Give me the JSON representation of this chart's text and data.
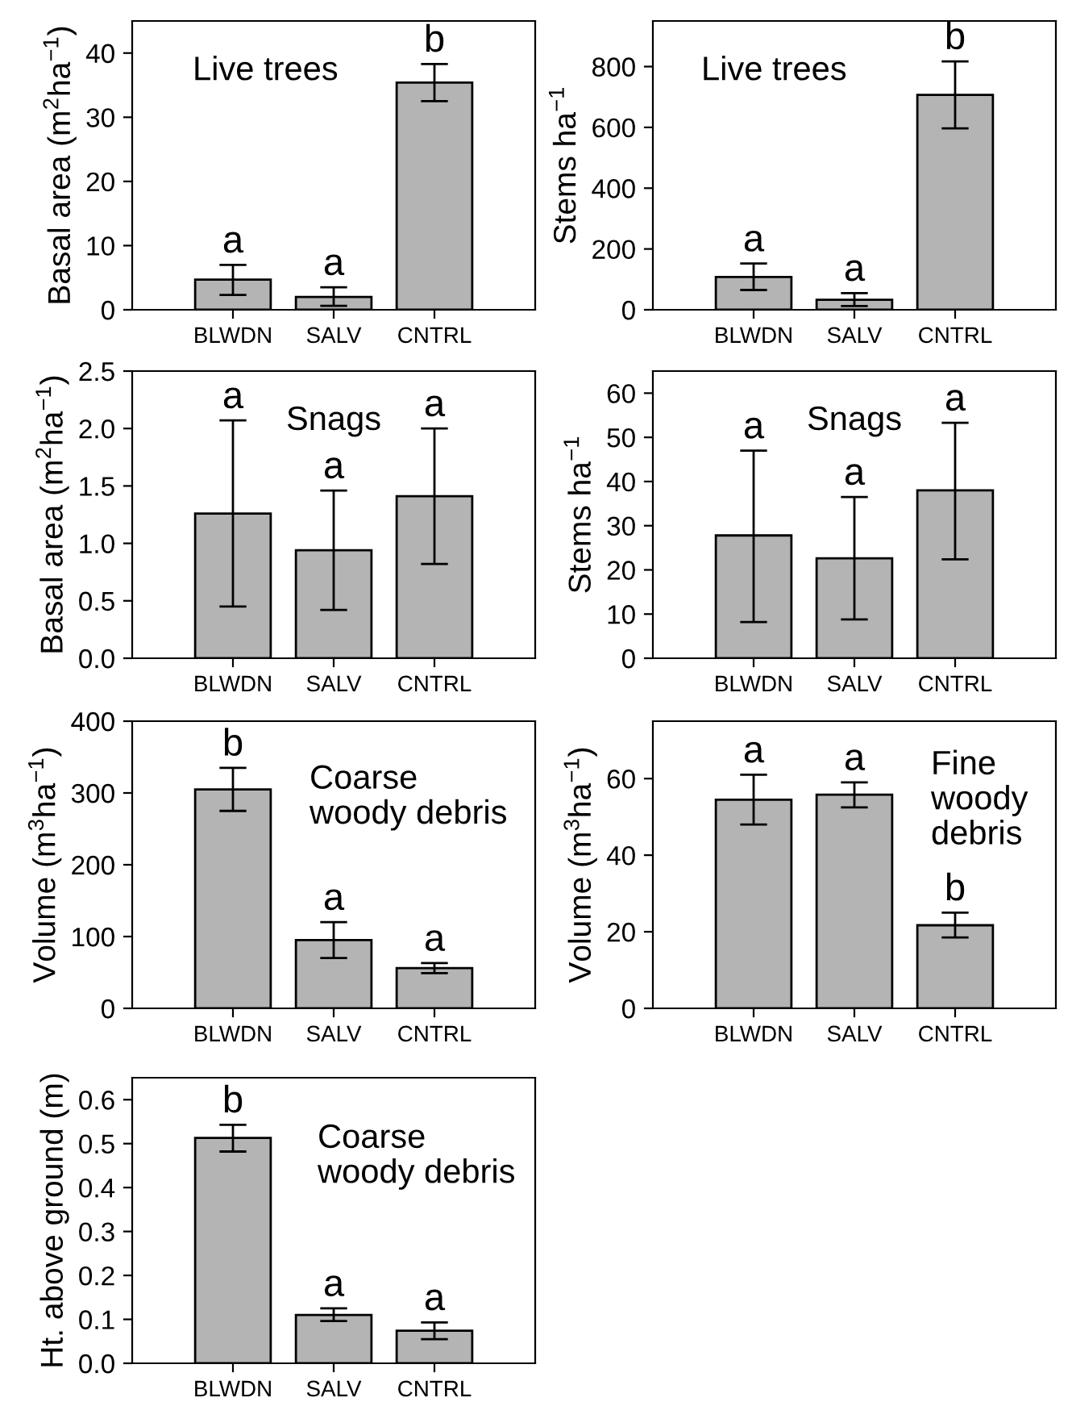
{
  "chart_data": [
    {
      "type": "bar",
      "title": "Live trees",
      "ylabel": "Basal area (m$^{2}$ha$^{−1}$)",
      "categories": [
        "BLWDN",
        "SALV",
        "CNTRL"
      ],
      "values": [
        4.7,
        2.0,
        35.4
      ],
      "errors": [
        [
          2.3,
          7.0
        ],
        [
          0.6,
          3.5
        ],
        [
          32.5,
          38.3
        ]
      ],
      "color": "#b4b4b4",
      "ylim": [
        0,
        45
      ],
      "yticks": [
        0,
        10,
        20,
        30,
        40
      ],
      "annotations": [
        {
          "text": "a",
          "x": "BLWDN",
          "y": 7.0
        },
        {
          "text": "a",
          "x": "SALV",
          "y": 3.5
        },
        {
          "text": "b",
          "x": "CNTRL",
          "y": 38.3
        }
      ]
    },
    {
      "type": "bar",
      "title": "Live trees",
      "ylabel": "Stems ha$^{−1}$",
      "categories": [
        "BLWDN",
        "SALV",
        "CNTRL"
      ],
      "values": [
        108,
        33,
        707
      ],
      "errors": [
        [
          65,
          152
        ],
        [
          12,
          55
        ],
        [
          597,
          817
        ]
      ],
      "color": "#b4b4b4",
      "ylim": [
        0,
        950
      ],
      "yticks": [
        0,
        200,
        400,
        600,
        800
      ],
      "annotations": [
        {
          "text": "a",
          "x": "BLWDN",
          "y": 152
        },
        {
          "text": "a",
          "x": "SALV",
          "y": 55
        },
        {
          "text": "b",
          "x": "CNTRL",
          "y": 817
        }
      ]
    },
    {
      "type": "bar",
      "title": "Snags",
      "ylabel": "Basal area (m$^{2}$ha$^{−1}$)",
      "categories": [
        "BLWDN",
        "SALV",
        "CNTRL"
      ],
      "values": [
        1.26,
        0.94,
        1.41
      ],
      "errors": [
        [
          0.45,
          2.07
        ],
        [
          0.42,
          1.46
        ],
        [
          0.82,
          2.0
        ]
      ],
      "color": "#b4b4b4",
      "ylim": [
        0,
        2.5
      ],
      "yticks": [
        {
          "value": 0,
          "label": "0.0"
        },
        {
          "value": 0.5,
          "label": "0.5"
        },
        {
          "value": 1,
          "label": "1.0"
        },
        {
          "value": 1.5,
          "label": "1.5"
        },
        {
          "value": 2,
          "label": "2.0"
        },
        {
          "value": 2.5,
          "label": "2.5"
        }
      ],
      "annotations": [
        {
          "text": "a",
          "x": "BLWDN",
          "y": 2.07
        },
        {
          "text": "a",
          "x": "SALV",
          "y": 1.46
        },
        {
          "text": "a",
          "x": "CNTRL",
          "y": 2.0
        }
      ]
    },
    {
      "type": "bar",
      "title": "Snags",
      "ylabel": "Stems ha$^{−1}$",
      "categories": [
        "BLWDN",
        "SALV",
        "CNTRL"
      ],
      "values": [
        27.8,
        22.6,
        38.0
      ],
      "errors": [
        [
          8.2,
          47.0
        ],
        [
          8.8,
          36.5
        ],
        [
          22.4,
          53.3
        ]
      ],
      "color": "#b4b4b4",
      "ylim": [
        0,
        65
      ],
      "yticks": [
        0,
        10,
        20,
        30,
        40,
        50,
        60
      ],
      "annotations": [
        {
          "text": "a",
          "x": "BLWDN",
          "y": 47.0
        },
        {
          "text": "a",
          "x": "SALV",
          "y": 36.5
        },
        {
          "text": "a",
          "x": "CNTRL",
          "y": 53.3
        }
      ]
    },
    {
      "type": "bar",
      "title": "Coarse\nwoody debris",
      "ylabel": "Volume (m$^{3}$ha$^{−1}$)",
      "categories": [
        "BLWDN",
        "SALV",
        "CNTRL"
      ],
      "values": [
        305,
        95,
        56
      ],
      "errors": [
        [
          275,
          335
        ],
        [
          70,
          120
        ],
        [
          49,
          63
        ]
      ],
      "color": "#b4b4b4",
      "ylim": [
        0,
        400
      ],
      "yticks": [
        0,
        100,
        200,
        300,
        400
      ],
      "annotations": [
        {
          "text": "b",
          "x": "BLWDN",
          "y": 335
        },
        {
          "text": "a",
          "x": "SALV",
          "y": 120
        },
        {
          "text": "a",
          "x": "CNTRL",
          "y": 63
        }
      ]
    },
    {
      "type": "bar",
      "title": "Fine\nwoody\ndebris",
      "ylabel": "Volume (m$^{3}$ha$^{−1}$)",
      "categories": [
        "BLWDN",
        "SALV",
        "CNTRL"
      ],
      "values": [
        54.5,
        55.8,
        21.7
      ],
      "errors": [
        [
          48.0,
          61.0
        ],
        [
          52.5,
          59.0
        ],
        [
          18.5,
          25.0
        ]
      ],
      "color": "#b4b4b4",
      "ylim": [
        0,
        75
      ],
      "yticks": [
        0,
        20,
        40,
        60
      ],
      "annotations": [
        {
          "text": "a",
          "x": "BLWDN",
          "y": 61.0
        },
        {
          "text": "a",
          "x": "SALV",
          "y": 59.0
        },
        {
          "text": "b",
          "x": "CNTRL",
          "y": 25.0
        }
      ]
    },
    {
      "type": "bar",
      "title": "Coarse\nwoody debris",
      "ylabel": "Ht. above ground (m)",
      "categories": [
        "BLWDN",
        "SALV",
        "CNTRL"
      ],
      "values": [
        0.513,
        0.11,
        0.074
      ],
      "errors": [
        [
          0.482,
          0.543
        ],
        [
          0.096,
          0.125
        ],
        [
          0.055,
          0.093
        ]
      ],
      "color": "#b4b4b4",
      "ylim": [
        0,
        0.65
      ],
      "yticks": [
        {
          "value": 0,
          "label": "0.0"
        },
        0.1,
        0.2,
        0.3,
        0.4,
        0.5,
        0.6
      ],
      "annotations": [
        {
          "text": "b",
          "x": "BLWDN",
          "y": 0.543
        },
        {
          "text": "a",
          "x": "SALV",
          "y": 0.125
        },
        {
          "text": "a",
          "x": "CNTRL",
          "y": 0.093
        }
      ]
    }
  ]
}
